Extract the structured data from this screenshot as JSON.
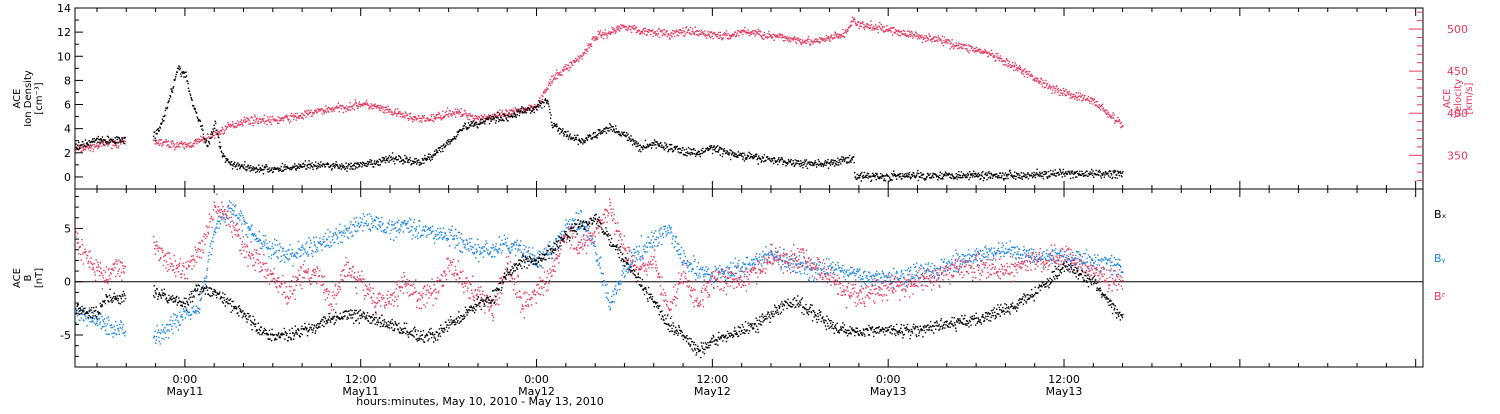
{
  "colors": {
    "black": "#000000",
    "velocity": "#e8385f",
    "by": "#1a87e6",
    "bz": "#e8385f"
  },
  "x_axis": {
    "label": "hours:minutes, May 10, 2010 - May 13, 2010",
    "ticks": [
      {
        "hour": 0,
        "time": "0:00",
        "day": "May11"
      },
      {
        "hour": 12,
        "time": "12:00",
        "day": "May11"
      },
      {
        "hour": 24,
        "time": "0:00",
        "day": "May12"
      },
      {
        "hour": 36,
        "time": "12:00",
        "day": "May12"
      },
      {
        "hour": 48,
        "time": "0:00",
        "day": "May13"
      },
      {
        "hour": 60,
        "time": "12:00",
        "day": "May13"
      }
    ],
    "range_hours": [
      -7.5,
      84.5
    ],
    "minor_step_hours": 2
  },
  "chart_data": [
    {
      "type": "scatter",
      "panel": "top",
      "ylabel_left": [
        "ACE",
        "Ion Density",
        "[cm⁻³]"
      ],
      "ylabel_right": [
        "ACE",
        "Velocity",
        "[km/s]"
      ],
      "ylim_left": [
        -1,
        14
      ],
      "yticks_left": [
        "0",
        "2",
        "4",
        "6",
        "8",
        "10",
        "12",
        "14"
      ],
      "ylim_right": [
        310,
        525
      ],
      "yticks_right": [
        "350",
        "400",
        "450",
        "500"
      ],
      "series": [
        {
          "axis": "left",
          "x": [
            -7.5,
            -6,
            -5.6,
            -2,
            -1.5,
            -1,
            -0.5,
            0,
            0.5,
            1,
            1.5,
            2,
            2.5,
            3,
            4,
            5,
            6,
            7,
            8,
            9,
            10,
            11,
            12,
            13,
            14,
            15,
            16,
            17,
            18,
            19,
            20,
            21,
            22,
            23,
            24,
            24.7,
            25,
            26,
            27,
            28,
            29,
            30,
            31,
            32,
            33,
            34,
            35,
            36,
            37,
            38,
            39,
            40,
            41,
            42,
            43,
            44,
            45,
            45.6,
            45.7,
            48,
            52,
            56,
            60,
            64
          ],
          "y": [
            2.5,
            3.2,
            3.0,
            3.5,
            5.0,
            7.0,
            9.0,
            8.5,
            6.0,
            4.5,
            2.5,
            4.5,
            2.0,
            1.2,
            0.9,
            0.7,
            0.7,
            0.8,
            1.0,
            1.0,
            1.0,
            0.9,
            1.0,
            1.2,
            1.6,
            1.5,
            1.2,
            2.0,
            3.0,
            4.2,
            4.5,
            5.0,
            5.0,
            5.5,
            5.8,
            6.5,
            4.5,
            3.5,
            3.0,
            3.5,
            4.2,
            3.5,
            2.5,
            2.8,
            2.5,
            2.2,
            2.0,
            2.5,
            2.0,
            1.8,
            1.6,
            1.5,
            1.3,
            1.2,
            1.2,
            1.1,
            1.5,
            1.6,
            0.1,
            0.1,
            0.2,
            0.2,
            0.3,
            0.3
          ]
        },
        {
          "axis": "right",
          "x": [
            -7.5,
            -6,
            -5.6,
            -2,
            -1,
            0,
            1,
            2,
            3,
            4,
            5,
            6,
            7,
            8,
            9,
            10,
            11,
            12,
            13,
            14,
            15,
            16,
            17,
            18,
            19,
            20,
            21,
            22,
            23,
            24,
            25,
            26,
            27,
            28,
            29,
            30,
            31,
            32,
            33,
            34,
            35,
            36,
            37,
            38,
            39,
            40,
            41,
            42,
            43,
            44,
            45,
            45.6,
            46,
            47,
            48,
            49,
            50,
            51,
            52,
            53,
            54,
            55,
            56,
            57,
            58,
            59,
            60,
            61,
            62,
            63,
            64
          ],
          "y": [
            358,
            362,
            365,
            367,
            364,
            362,
            368,
            375,
            385,
            392,
            393,
            392,
            395,
            398,
            403,
            406,
            408,
            412,
            408,
            402,
            398,
            393,
            395,
            402,
            400,
            395,
            397,
            400,
            405,
            410,
            440,
            455,
            468,
            492,
            497,
            505,
            498,
            498,
            494,
            498,
            496,
            494,
            492,
            498,
            496,
            492,
            490,
            488,
            485,
            490,
            495,
            512,
            505,
            503,
            500,
            496,
            492,
            490,
            485,
            480,
            476,
            470,
            460,
            452,
            442,
            432,
            425,
            420,
            415,
            400,
            385
          ]
        }
      ]
    },
    {
      "type": "scatter",
      "panel": "bottom",
      "ylabel_left": [
        "ACE",
        "B",
        "[nT]"
      ],
      "ylim": [
        -8,
        8.7
      ],
      "yticks": [
        "-5",
        "0",
        "5"
      ],
      "series": [
        {
          "name": "Bₓ",
          "x": [
            -7.5,
            -6,
            -5.6,
            -2,
            -1,
            0,
            1,
            2,
            3,
            4,
            5,
            6,
            7,
            8,
            9,
            10,
            11,
            12,
            13,
            14,
            15,
            16,
            17,
            18,
            19,
            20,
            21,
            22,
            23,
            24,
            25,
            26,
            27,
            28,
            29,
            30,
            31,
            32,
            33,
            34,
            35,
            36,
            37,
            38,
            39,
            40,
            41,
            42,
            43,
            44,
            45,
            46,
            47,
            48,
            50,
            52,
            54,
            56,
            58,
            60,
            62,
            64
          ],
          "y": [
            -2.5,
            -3.0,
            -1.5,
            -1.0,
            -1.5,
            -2.0,
            -0.5,
            -1.0,
            -2.0,
            -3.0,
            -4.5,
            -5.0,
            -5.0,
            -4.5,
            -4.0,
            -3.5,
            -3.0,
            -3.0,
            -3.5,
            -4.0,
            -4.5,
            -5.0,
            -5.0,
            -4.0,
            -3.0,
            -2.0,
            -1.5,
            1.0,
            2.0,
            2.0,
            3.0,
            4.5,
            5.5,
            6.0,
            4.0,
            2.0,
            0.0,
            -2.0,
            -4.0,
            -5.0,
            -6.5,
            -5.5,
            -5.0,
            -4.5,
            -4.0,
            -3.0,
            -2.0,
            -2.0,
            -3.0,
            -4.0,
            -4.5,
            -4.5,
            -4.5,
            -4.5,
            -4.5,
            -4.0,
            -3.5,
            -2.5,
            -1.0,
            1.5,
            0.0,
            -3.5
          ]
        },
        {
          "name": "Bᵧ",
          "x": [
            -7.5,
            -6,
            -5.6,
            -2,
            -1,
            0,
            1,
            2,
            3,
            4,
            5,
            6,
            7,
            8,
            9,
            10,
            11,
            12,
            13,
            14,
            15,
            16,
            17,
            18,
            19,
            20,
            21,
            22,
            23,
            24,
            25,
            26,
            27,
            28,
            29,
            30,
            31,
            32,
            33,
            34,
            35,
            36,
            37,
            38,
            39,
            40,
            41,
            42,
            43,
            44,
            45,
            46,
            47,
            48,
            50,
            52,
            54,
            56,
            58,
            60,
            62,
            64
          ],
          "y": [
            -3.0,
            -3.5,
            -4.0,
            -5.0,
            -4.0,
            -3.0,
            -2.0,
            5.0,
            7.0,
            5.5,
            4.0,
            3.0,
            2.5,
            3.0,
            3.5,
            4.0,
            5.0,
            5.5,
            5.5,
            5.0,
            5.5,
            5.0,
            4.5,
            4.5,
            3.5,
            3.0,
            3.0,
            3.5,
            3.0,
            2.0,
            3.0,
            5.0,
            6.0,
            3.0,
            -2.0,
            1.0,
            3.0,
            4.0,
            5.0,
            2.0,
            1.0,
            0.5,
            1.0,
            1.5,
            2.0,
            2.5,
            2.0,
            1.5,
            1.0,
            1.5,
            1.0,
            0.5,
            0.5,
            0.5,
            1.0,
            1.5,
            2.5,
            3.0,
            2.5,
            2.5,
            2.0,
            1.5
          ]
        },
        {
          "name": "Bᶻ",
          "x": [
            -7.5,
            -6,
            -5.6,
            -2,
            -1,
            0,
            1,
            2,
            3,
            4,
            5,
            6,
            7,
            8,
            9,
            10,
            11,
            12,
            13,
            14,
            15,
            16,
            17,
            18,
            19,
            20,
            21,
            22,
            23,
            24,
            25,
            26,
            27,
            28,
            29,
            30,
            31,
            32,
            33,
            34,
            35,
            36,
            37,
            38,
            39,
            40,
            41,
            42,
            43,
            44,
            45,
            46,
            47,
            48,
            50,
            52,
            54,
            56,
            58,
            60,
            62,
            64
          ],
          "y": [
            4.0,
            1.0,
            0.5,
            3.5,
            1.5,
            1.0,
            3.0,
            7.0,
            6.0,
            3.0,
            2.0,
            0.5,
            -1.0,
            0.5,
            1.0,
            -2.0,
            1.5,
            0.0,
            -2.0,
            -1.5,
            0.0,
            -1.5,
            -1.0,
            2.0,
            0.0,
            -1.0,
            -2.5,
            2.0,
            -2.0,
            -1.0,
            1.0,
            5.0,
            3.0,
            5.0,
            7.0,
            3.0,
            1.0,
            2.0,
            -3.0,
            1.0,
            -2.0,
            0.5,
            0.0,
            0.5,
            1.0,
            2.5,
            2.0,
            2.5,
            1.5,
            0.5,
            -1.0,
            -1.0,
            -1.0,
            -0.5,
            0.0,
            1.0,
            1.5,
            1.0,
            2.0,
            2.5,
            1.0,
            0.0
          ]
        }
      ]
    }
  ]
}
